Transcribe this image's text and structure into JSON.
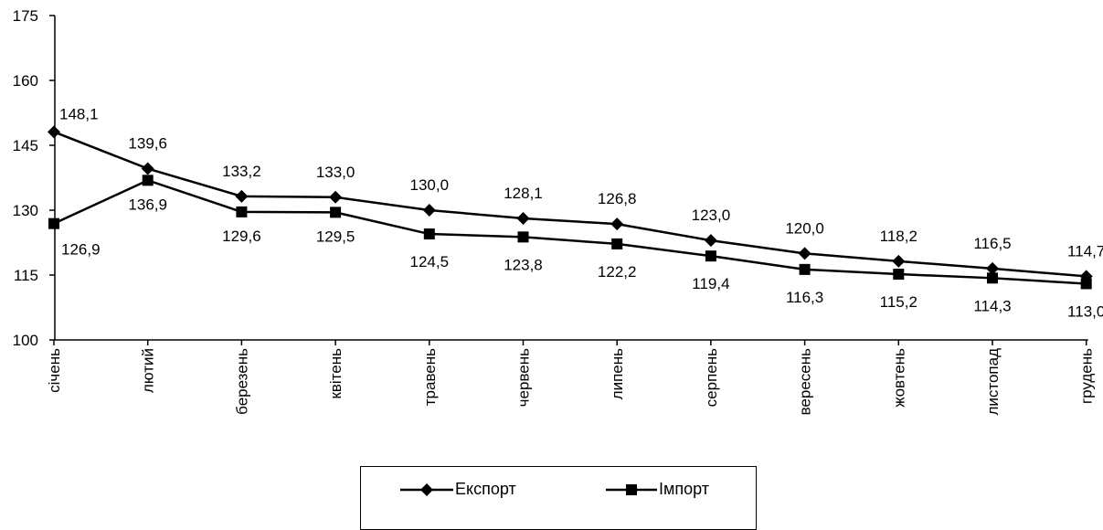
{
  "chart_data": {
    "type": "line",
    "categories": [
      "січень",
      "лютий",
      "березень",
      "квітень",
      "травень",
      "червень",
      "липень",
      "серпень",
      "вересень",
      "жовтень",
      "листопад",
      "грудень"
    ],
    "series": [
      {
        "name": "Експорт",
        "marker": "diamond",
        "values": [
          148.1,
          139.6,
          133.2,
          133.0,
          130.0,
          128.1,
          126.8,
          123.0,
          120.0,
          118.2,
          116.5,
          114.7
        ],
        "labels": [
          "148,1",
          "139,6",
          "133,2",
          "133,0",
          "130,0",
          "128,1",
          "126,8",
          "123,0",
          "120,0",
          "118,2",
          "116,5",
          "114,7"
        ]
      },
      {
        "name": "Імпорт",
        "marker": "square",
        "values": [
          126.9,
          136.9,
          129.6,
          129.5,
          124.5,
          123.8,
          122.2,
          119.4,
          116.3,
          115.2,
          114.3,
          113.0
        ],
        "labels": [
          "126,9",
          "136,9",
          "129,6",
          "129,5",
          "124,5",
          "123,8",
          "122,2",
          "119,4",
          "116,3",
          "115,2",
          "114,3",
          "113,0"
        ]
      }
    ],
    "yticks": [
      "100",
      "115",
      "130",
      "145",
      "160",
      "175"
    ],
    "ylim": [
      100,
      175
    ],
    "ytick_step": 15,
    "grid": false,
    "legend_position": "bottom",
    "line_color": "#000000"
  }
}
